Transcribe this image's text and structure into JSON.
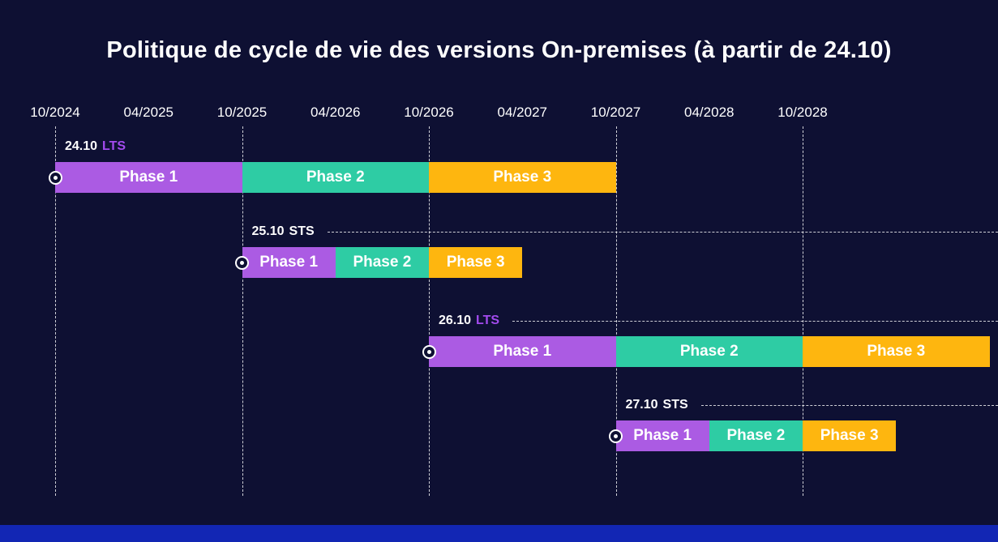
{
  "colors": {
    "background": "#0e1033",
    "phase1_purple": "#ab5be3",
    "phase2_teal": "#2ecca4",
    "phase3_amber": "#feb60f",
    "lts_text_purple": "#a34bef",
    "sts_text_white": "#ffffff",
    "footer_blue": "#1226b4",
    "text": "#ffffff",
    "gridline": "rgba(255,255,255,0.8)"
  },
  "chart_data": {
    "type": "gantt",
    "title": "Politique de cycle de vie des versions On-premises (à partir de 24.10)",
    "x_ticks": [
      "10/2024",
      "04/2025",
      "10/2025",
      "04/2026",
      "10/2026",
      "04/2027",
      "10/2027",
      "04/2028",
      "10/2028"
    ],
    "x_gridlines": [
      "10/2024",
      "10/2025",
      "10/2026",
      "10/2027",
      "10/2028"
    ],
    "x_range_note": "axis ticks every 6 months, dashed vertical gridlines at each October",
    "legend": "none",
    "series": [
      {
        "name": "24.10",
        "release_type": "LTS",
        "start": "10/2024",
        "dashed_leader": false,
        "phases": [
          {
            "label": "Phase 1",
            "start": "10/2024",
            "end": "10/2025",
            "months": 12
          },
          {
            "label": "Phase 2",
            "start": "10/2025",
            "end": "10/2026",
            "months": 12
          },
          {
            "label": "Phase 3",
            "start": "10/2026",
            "end": "10/2027",
            "months": 12
          }
        ]
      },
      {
        "name": "25.10",
        "release_type": "STS",
        "start": "10/2025",
        "dashed_leader": true,
        "phases": [
          {
            "label": "Phase 1",
            "start": "10/2025",
            "end": "04/2026",
            "months": 6
          },
          {
            "label": "Phase 2",
            "start": "04/2026",
            "end": "10/2026",
            "months": 6
          },
          {
            "label": "Phase 3",
            "start": "10/2026",
            "end": "04/2027",
            "months": 6
          }
        ]
      },
      {
        "name": "26.10",
        "release_type": "LTS",
        "start": "10/2026",
        "dashed_leader": true,
        "phases": [
          {
            "label": "Phase 1",
            "start": "10/2026",
            "end": "10/2027",
            "months": 12
          },
          {
            "label": "Phase 2",
            "start": "10/2027",
            "end": "10/2028",
            "months": 12
          },
          {
            "label": "Phase 3",
            "start": "10/2028",
            "end": "10/2029",
            "months": 12
          }
        ]
      },
      {
        "name": "27.10",
        "release_type": "STS",
        "start": "10/2027",
        "dashed_leader": true,
        "phases": [
          {
            "label": "Phase 1",
            "start": "10/2027",
            "end": "04/2028",
            "months": 6
          },
          {
            "label": "Phase 2",
            "start": "04/2028",
            "end": "10/2028",
            "months": 6
          },
          {
            "label": "Phase 3",
            "start": "10/2028",
            "end": "04/2029",
            "months": 6
          }
        ]
      }
    ]
  }
}
